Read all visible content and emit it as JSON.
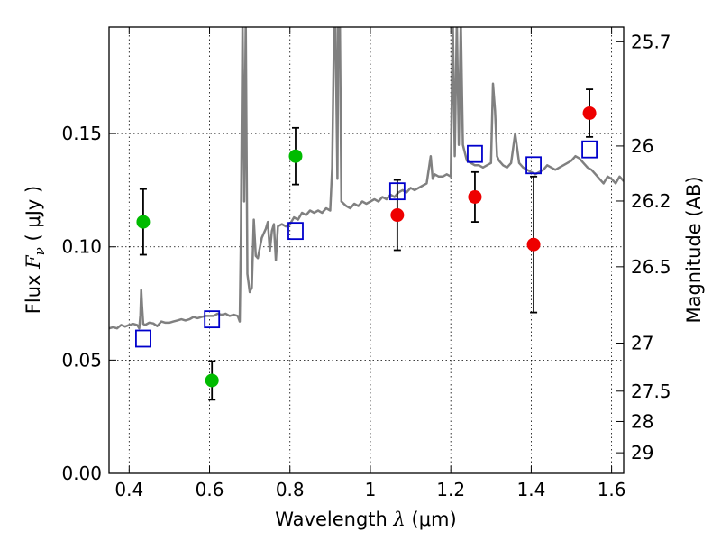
{
  "chart_data": {
    "type": "scatter",
    "xlabel": "Wavelength  λ (μm)",
    "ylabel": "Flux  Fν  ( μJy )",
    "ylabel_parts": {
      "pre": "Flux  ",
      "var": "F",
      "sub": "ν",
      "post": "  ( μJy )"
    },
    "xlabel_parts": {
      "pre": "Wavelength  ",
      "var": "λ",
      "post": " (μm)"
    },
    "y2label": "Magnitude (AB)",
    "xlim": [
      0.35,
      1.63
    ],
    "ylim": [
      0.0,
      0.197
    ],
    "grid": true,
    "x_ticks": [
      {
        "value": 0.4,
        "label": "0.4"
      },
      {
        "value": 0.6,
        "label": "0.6"
      },
      {
        "value": 0.8,
        "label": "0.8"
      },
      {
        "value": 1.0,
        "label": "1"
      },
      {
        "value": 1.2,
        "label": "1.2"
      },
      {
        "value": 1.4,
        "label": "1.4"
      },
      {
        "value": 1.6,
        "label": "1.6"
      }
    ],
    "y_ticks": [
      {
        "value": 0.0,
        "label": "0.00"
      },
      {
        "value": 0.05,
        "label": "0.05"
      },
      {
        "value": 0.1,
        "label": "0.10"
      },
      {
        "value": 0.15,
        "label": "0.15"
      }
    ],
    "y2_ticks": [
      {
        "flux": 0.1905,
        "label": "25.7"
      },
      {
        "flux": 0.1445,
        "label": "26"
      },
      {
        "flux": 0.1202,
        "label": "26.2"
      },
      {
        "flux": 0.0912,
        "label": "26.5"
      },
      {
        "flux": 0.0575,
        "label": "27"
      },
      {
        "flux": 0.0363,
        "label": "27.5"
      },
      {
        "flux": 0.0229,
        "label": "28"
      },
      {
        "flux": 0.0091,
        "label": "29"
      }
    ],
    "colors": {
      "template": "#808080",
      "green": "#00bb00",
      "red": "#ee0000",
      "blue": "#0000cc",
      "errorbar": "#000000"
    },
    "series": [
      {
        "kind": "points_green",
        "points": [
          {
            "x": 0.435,
            "y": 0.111,
            "yerr": 0.0145
          },
          {
            "x": 0.606,
            "y": 0.041,
            "yerr": 0.0085
          },
          {
            "x": 0.814,
            "y": 0.14,
            "yerr": 0.0125
          }
        ]
      },
      {
        "kind": "points_red",
        "points": [
          {
            "x": 1.067,
            "y": 0.114,
            "yerr": 0.0155
          },
          {
            "x": 1.26,
            "y": 0.122,
            "yerr": 0.011
          },
          {
            "x": 1.406,
            "y": 0.101,
            "yerr": 0.03
          },
          {
            "x": 1.545,
            "y": 0.159,
            "yerr": 0.0105
          }
        ]
      },
      {
        "kind": "model_squares",
        "points": [
          {
            "x": 0.435,
            "y": 0.0595
          },
          {
            "x": 0.606,
            "y": 0.068
          },
          {
            "x": 0.814,
            "y": 0.107
          },
          {
            "x": 1.067,
            "y": 0.1245
          },
          {
            "x": 1.26,
            "y": 0.141
          },
          {
            "x": 1.406,
            "y": 0.136
          },
          {
            "x": 1.545,
            "y": 0.143
          }
        ]
      },
      {
        "kind": "template_spectrum",
        "points": [
          [
            0.35,
            0.064
          ],
          [
            0.36,
            0.0645
          ],
          [
            0.37,
            0.064
          ],
          [
            0.38,
            0.0655
          ],
          [
            0.39,
            0.0648
          ],
          [
            0.4,
            0.0655
          ],
          [
            0.41,
            0.066
          ],
          [
            0.42,
            0.0655
          ],
          [
            0.425,
            0.064
          ],
          [
            0.428,
            0.07
          ],
          [
            0.43,
            0.081
          ],
          [
            0.432,
            0.074
          ],
          [
            0.435,
            0.066
          ],
          [
            0.44,
            0.0655
          ],
          [
            0.45,
            0.0665
          ],
          [
            0.46,
            0.0662
          ],
          [
            0.47,
            0.065
          ],
          [
            0.48,
            0.067
          ],
          [
            0.49,
            0.0665
          ],
          [
            0.5,
            0.0665
          ],
          [
            0.51,
            0.067
          ],
          [
            0.52,
            0.0675
          ],
          [
            0.53,
            0.068
          ],
          [
            0.54,
            0.0675
          ],
          [
            0.55,
            0.068
          ],
          [
            0.56,
            0.069
          ],
          [
            0.57,
            0.0685
          ],
          [
            0.58,
            0.069
          ],
          [
            0.59,
            0.0695
          ],
          [
            0.6,
            0.0695
          ],
          [
            0.61,
            0.0695
          ],
          [
            0.62,
            0.0705
          ],
          [
            0.63,
            0.07
          ],
          [
            0.64,
            0.0705
          ],
          [
            0.65,
            0.0695
          ],
          [
            0.66,
            0.07
          ],
          [
            0.67,
            0.0695
          ],
          [
            0.675,
            0.067
          ],
          [
            0.678,
            0.105
          ],
          [
            0.682,
            0.2
          ],
          [
            0.686,
            0.12
          ],
          [
            0.69,
            0.2
          ],
          [
            0.694,
            0.088
          ],
          [
            0.7,
            0.08
          ],
          [
            0.705,
            0.082
          ],
          [
            0.71,
            0.112
          ],
          [
            0.715,
            0.096
          ],
          [
            0.72,
            0.095
          ],
          [
            0.73,
            0.104
          ],
          [
            0.74,
            0.108
          ],
          [
            0.745,
            0.111
          ],
          [
            0.75,
            0.098
          ],
          [
            0.755,
            0.107
          ],
          [
            0.76,
            0.11
          ],
          [
            0.765,
            0.094
          ],
          [
            0.77,
            0.109
          ],
          [
            0.78,
            0.11
          ],
          [
            0.79,
            0.109
          ],
          [
            0.8,
            0.11
          ],
          [
            0.81,
            0.113
          ],
          [
            0.82,
            0.112
          ],
          [
            0.83,
            0.115
          ],
          [
            0.84,
            0.114
          ],
          [
            0.85,
            0.116
          ],
          [
            0.86,
            0.115
          ],
          [
            0.87,
            0.116
          ],
          [
            0.88,
            0.115
          ],
          [
            0.89,
            0.117
          ],
          [
            0.9,
            0.116
          ],
          [
            0.905,
            0.135
          ],
          [
            0.91,
            0.2
          ],
          [
            0.913,
            0.2
          ],
          [
            0.918,
            0.13
          ],
          [
            0.92,
            0.2
          ],
          [
            0.924,
            0.2
          ],
          [
            0.928,
            0.12
          ],
          [
            0.94,
            0.118
          ],
          [
            0.95,
            0.117
          ],
          [
            0.96,
            0.119
          ],
          [
            0.97,
            0.118
          ],
          [
            0.98,
            0.12
          ],
          [
            0.99,
            0.119
          ],
          [
            1.0,
            0.12
          ],
          [
            1.01,
            0.121
          ],
          [
            1.02,
            0.12
          ],
          [
            1.03,
            0.122
          ],
          [
            1.04,
            0.121
          ],
          [
            1.05,
            0.123
          ],
          [
            1.06,
            0.122
          ],
          [
            1.07,
            0.124
          ],
          [
            1.08,
            0.125
          ],
          [
            1.09,
            0.124
          ],
          [
            1.1,
            0.126
          ],
          [
            1.11,
            0.125
          ],
          [
            1.12,
            0.126
          ],
          [
            1.13,
            0.127
          ],
          [
            1.14,
            0.128
          ],
          [
            1.15,
            0.14
          ],
          [
            1.155,
            0.13
          ],
          [
            1.16,
            0.132
          ],
          [
            1.17,
            0.131
          ],
          [
            1.18,
            0.131
          ],
          [
            1.19,
            0.132
          ],
          [
            1.2,
            0.131
          ],
          [
            1.205,
            0.2
          ],
          [
            1.21,
            0.14
          ],
          [
            1.215,
            0.2
          ],
          [
            1.22,
            0.145
          ],
          [
            1.225,
            0.2
          ],
          [
            1.23,
            0.145
          ],
          [
            1.24,
            0.138
          ],
          [
            1.25,
            0.137
          ],
          [
            1.26,
            0.136
          ],
          [
            1.27,
            0.136
          ],
          [
            1.28,
            0.135
          ],
          [
            1.29,
            0.136
          ],
          [
            1.3,
            0.137
          ],
          [
            1.305,
            0.172
          ],
          [
            1.31,
            0.16
          ],
          [
            1.315,
            0.14
          ],
          [
            1.32,
            0.138
          ],
          [
            1.33,
            0.136
          ],
          [
            1.34,
            0.135
          ],
          [
            1.35,
            0.137
          ],
          [
            1.36,
            0.15
          ],
          [
            1.37,
            0.137
          ],
          [
            1.38,
            0.135
          ],
          [
            1.39,
            0.134
          ],
          [
            1.4,
            0.133
          ],
          [
            1.41,
            0.132
          ],
          [
            1.42,
            0.133
          ],
          [
            1.43,
            0.134
          ],
          [
            1.44,
            0.136
          ],
          [
            1.45,
            0.135
          ],
          [
            1.46,
            0.134
          ],
          [
            1.47,
            0.135
          ],
          [
            1.48,
            0.136
          ],
          [
            1.49,
            0.137
          ],
          [
            1.5,
            0.138
          ],
          [
            1.51,
            0.14
          ],
          [
            1.52,
            0.139
          ],
          [
            1.53,
            0.137
          ],
          [
            1.54,
            0.135
          ],
          [
            1.55,
            0.134
          ],
          [
            1.56,
            0.132
          ],
          [
            1.57,
            0.13
          ],
          [
            1.58,
            0.128
          ],
          [
            1.59,
            0.131
          ],
          [
            1.6,
            0.13
          ],
          [
            1.61,
            0.128
          ],
          [
            1.62,
            0.131
          ],
          [
            1.63,
            0.129
          ]
        ]
      }
    ]
  }
}
